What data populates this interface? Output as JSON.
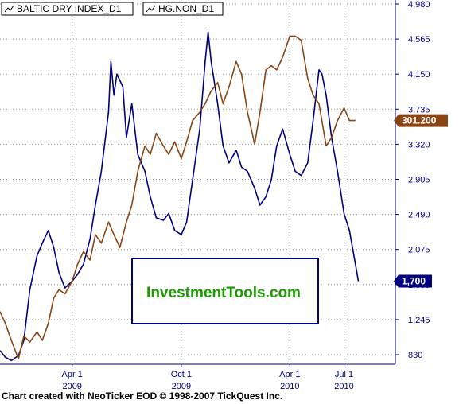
{
  "footer": "Chart created with NeoTicker EOD © 1998-2007 TickQuest Inc.",
  "chart_data": {
    "type": "line",
    "grid": true,
    "legend_position": "top-left",
    "y_axis_side": "right",
    "yticks": [
      "4,980",
      "4,565",
      "4,150",
      "3,735",
      "3,320",
      "2,905",
      "2,490",
      "2,075",
      "1,660",
      "1,245",
      "830"
    ],
    "ylim": [
      415,
      4980
    ],
    "xticks": [
      {
        "label": "Apr 1",
        "year": "2009",
        "date": "2009-04-01"
      },
      {
        "label": "Oct 1",
        "year": "2009",
        "date": "2009-10-01"
      },
      {
        "label": "Apr 1",
        "year": "2010",
        "date": "2010-04-01"
      },
      {
        "label": "Jul 1",
        "year": "2010",
        "date": "2010-07-01"
      }
    ],
    "xlim": [
      "2008-12-01",
      "2010-09-25"
    ],
    "series": [
      {
        "name": "BALTIC DRY INDEX_D1",
        "color": "#000080",
        "last_value": "1,700",
        "points": [
          [
            "2008-12-01",
            880
          ],
          [
            "2008-12-10",
            800
          ],
          [
            "2008-12-20",
            760
          ],
          [
            "2009-01-01",
            820
          ],
          [
            "2009-01-10",
            1000
          ],
          [
            "2009-01-20",
            1600
          ],
          [
            "2009-02-01",
            2000
          ],
          [
            "2009-02-10",
            2150
          ],
          [
            "2009-02-20",
            2300
          ],
          [
            "2009-03-01",
            2100
          ],
          [
            "2009-03-10",
            1800
          ],
          [
            "2009-03-20",
            1620
          ],
          [
            "2009-04-01",
            1700
          ],
          [
            "2009-04-10",
            1780
          ],
          [
            "2009-04-20",
            1900
          ],
          [
            "2009-05-01",
            2200
          ],
          [
            "2009-05-10",
            2600
          ],
          [
            "2009-05-20",
            3000
          ],
          [
            "2009-06-01",
            3700
          ],
          [
            "2009-06-05",
            4300
          ],
          [
            "2009-06-10",
            3900
          ],
          [
            "2009-06-15",
            4150
          ],
          [
            "2009-06-25",
            4000
          ],
          [
            "2009-07-01",
            3400
          ],
          [
            "2009-07-10",
            3800
          ],
          [
            "2009-07-20",
            3200
          ],
          [
            "2009-08-01",
            3000
          ],
          [
            "2009-08-10",
            2700
          ],
          [
            "2009-08-20",
            2450
          ],
          [
            "2009-09-01",
            2420
          ],
          [
            "2009-09-10",
            2500
          ],
          [
            "2009-09-20",
            2300
          ],
          [
            "2009-10-01",
            2250
          ],
          [
            "2009-10-10",
            2400
          ],
          [
            "2009-10-20",
            2900
          ],
          [
            "2009-11-01",
            3500
          ],
          [
            "2009-11-10",
            4300
          ],
          [
            "2009-11-15",
            4650
          ],
          [
            "2009-11-20",
            4300
          ],
          [
            "2009-12-01",
            3800
          ],
          [
            "2009-12-10",
            3300
          ],
          [
            "2009-12-20",
            3100
          ],
          [
            "2010-01-01",
            3250
          ],
          [
            "2010-01-10",
            3050
          ],
          [
            "2010-01-20",
            3000
          ],
          [
            "2010-02-01",
            2800
          ],
          [
            "2010-02-10",
            2600
          ],
          [
            "2010-02-20",
            2700
          ],
          [
            "2010-03-01",
            2900
          ],
          [
            "2010-03-10",
            3300
          ],
          [
            "2010-03-20",
            3500
          ],
          [
            "2010-04-01",
            3200
          ],
          [
            "2010-04-10",
            3000
          ],
          [
            "2010-04-20",
            2950
          ],
          [
            "2010-05-01",
            3100
          ],
          [
            "2010-05-10",
            3600
          ],
          [
            "2010-05-20",
            4200
          ],
          [
            "2010-05-25",
            4150
          ],
          [
            "2010-06-01",
            3900
          ],
          [
            "2010-06-10",
            3400
          ],
          [
            "2010-06-20",
            3000
          ],
          [
            "2010-07-01",
            2500
          ],
          [
            "2010-07-10",
            2300
          ],
          [
            "2010-07-20",
            1900
          ],
          [
            "2010-07-25",
            1700
          ]
        ]
      },
      {
        "name": "HG.NON_D1",
        "color": "#8B4513",
        "last_value": "301.200",
        "points": [
          [
            "2008-12-01",
            1340
          ],
          [
            "2008-12-10",
            1200
          ],
          [
            "2008-12-20",
            1000
          ],
          [
            "2009-01-01",
            780
          ],
          [
            "2009-01-10",
            1050
          ],
          [
            "2009-01-20",
            980
          ],
          [
            "2009-02-01",
            1100
          ],
          [
            "2009-02-10",
            1000
          ],
          [
            "2009-02-20",
            1200
          ],
          [
            "2009-03-01",
            1500
          ],
          [
            "2009-03-10",
            1600
          ],
          [
            "2009-03-20",
            1550
          ],
          [
            "2009-04-01",
            1700
          ],
          [
            "2009-04-10",
            1900
          ],
          [
            "2009-04-20",
            2050
          ],
          [
            "2009-05-01",
            1950
          ],
          [
            "2009-05-10",
            2250
          ],
          [
            "2009-05-20",
            2150
          ],
          [
            "2009-06-01",
            2400
          ],
          [
            "2009-06-10",
            2250
          ],
          [
            "2009-06-20",
            2100
          ],
          [
            "2009-07-01",
            2400
          ],
          [
            "2009-07-10",
            2600
          ],
          [
            "2009-07-20",
            3000
          ],
          [
            "2009-08-01",
            3300
          ],
          [
            "2009-08-10",
            3200
          ],
          [
            "2009-08-20",
            3450
          ],
          [
            "2009-09-01",
            3300
          ],
          [
            "2009-09-10",
            3200
          ],
          [
            "2009-09-20",
            3350
          ],
          [
            "2009-10-01",
            3150
          ],
          [
            "2009-10-10",
            3350
          ],
          [
            "2009-10-20",
            3600
          ],
          [
            "2009-11-01",
            3700
          ],
          [
            "2009-11-10",
            3800
          ],
          [
            "2009-11-20",
            3950
          ],
          [
            "2009-12-01",
            4050
          ],
          [
            "2009-12-10",
            3800
          ],
          [
            "2009-12-20",
            4000
          ],
          [
            "2010-01-01",
            4300
          ],
          [
            "2010-01-10",
            4150
          ],
          [
            "2010-01-20",
            3700
          ],
          [
            "2010-02-01",
            3320
          ],
          [
            "2010-02-10",
            3700
          ],
          [
            "2010-02-20",
            4200
          ],
          [
            "2010-03-01",
            4250
          ],
          [
            "2010-03-10",
            4200
          ],
          [
            "2010-03-20",
            4350
          ],
          [
            "2010-04-01",
            4600
          ],
          [
            "2010-04-10",
            4600
          ],
          [
            "2010-04-20",
            4550
          ],
          [
            "2010-05-01",
            4100
          ],
          [
            "2010-05-10",
            3900
          ],
          [
            "2010-05-20",
            3800
          ],
          [
            "2010-06-01",
            3300
          ],
          [
            "2010-06-10",
            3400
          ],
          [
            "2010-06-20",
            3600
          ],
          [
            "2010-07-01",
            3750
          ],
          [
            "2010-07-10",
            3600
          ],
          [
            "2010-07-20",
            3600
          ]
        ]
      }
    ]
  },
  "banner": {
    "text": "InvestmentTools.com",
    "text_color": "#1a9a00",
    "border_color": "#000080"
  },
  "colors": {
    "grid": "#9a9a9a",
    "axis": "#000080",
    "background": "#ffffff"
  }
}
